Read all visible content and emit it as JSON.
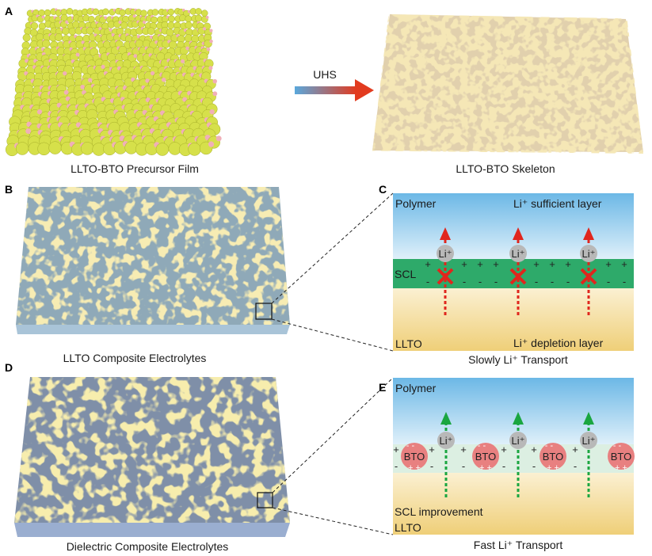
{
  "panels": {
    "a": {
      "letter": "A",
      "left_caption": "LLTO-BTO Precursor Film",
      "arrow_label": "UHS",
      "right_caption": "LLTO-BTO Skeleton"
    },
    "b": {
      "letter": "B",
      "caption": "LLTO Composite Electrolytes"
    },
    "c": {
      "letter": "C",
      "top_left": "Polymer",
      "top_right": "Li⁺ sufficient layer",
      "middle": "SCL",
      "bottom_left": "LLTO",
      "bottom_right": "Li⁺ depletion layer",
      "ion": "Li⁺",
      "caption": "Slowly Li⁺ Transport"
    },
    "d": {
      "letter": "D",
      "caption": "Dielectric Composite Electrolytes"
    },
    "e": {
      "letter": "E",
      "top_left": "Polymer",
      "particle": "BTO",
      "ion": "Li⁺",
      "scl_label": "SCL improvement",
      "bottom_left": "LLTO",
      "caption": "Fast Li⁺ Transport"
    }
  },
  "colors": {
    "polymer_top": "#6cb8e6",
    "llto": "#f0d383",
    "scl": "#2eaa6a",
    "blocked_arrow": "#e0261d",
    "pass_arrow": "#1aa640",
    "bto": "#e88080",
    "ion": "#b8b8b8",
    "particle_large": "#d6e04a",
    "particle_small": "#f0b0b8",
    "skeleton": "#e8cc78"
  }
}
